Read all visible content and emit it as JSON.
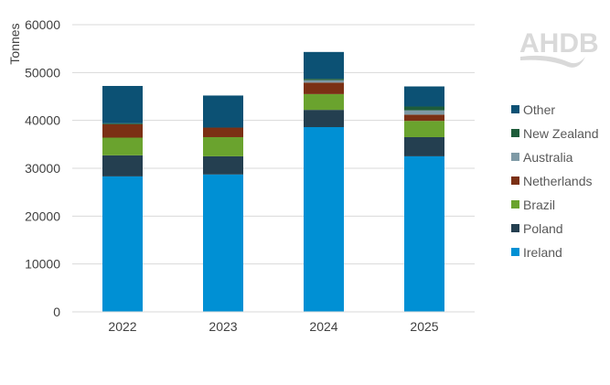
{
  "chart_data": {
    "type": "bar",
    "stacked": true,
    "title": "",
    "xlabel": "",
    "ylabel": "Tonnes",
    "ylim": [
      0,
      60000
    ],
    "yticks": [
      0,
      10000,
      20000,
      30000,
      40000,
      50000,
      60000
    ],
    "grid": true,
    "legend_position": "right",
    "categories": [
      "2022",
      "2023",
      "2024",
      "2025"
    ],
    "series": [
      {
        "name": "Ireland",
        "color": "#0090d4",
        "values": [
          28300,
          28700,
          38600,
          32500
        ]
      },
      {
        "name": "Poland",
        "color": "#243f50",
        "values": [
          4400,
          3800,
          3600,
          4000
        ]
      },
      {
        "name": "Brazil",
        "color": "#6aa32e",
        "values": [
          3700,
          4000,
          3300,
          3400
        ]
      },
      {
        "name": "Netherlands",
        "color": "#7b3014",
        "values": [
          2800,
          2000,
          2400,
          1300
        ]
      },
      {
        "name": "Australia",
        "color": "#7f9aa6",
        "values": [
          0,
          0,
          500,
          900
        ]
      },
      {
        "name": "New Zealand",
        "color": "#1e5c3a",
        "values": [
          200,
          0,
          300,
          800
        ]
      },
      {
        "name": "Other",
        "color": "#0c5174",
        "values": [
          7800,
          6700,
          5600,
          4200
        ]
      }
    ]
  },
  "logo": {
    "text": "AHDB"
  }
}
